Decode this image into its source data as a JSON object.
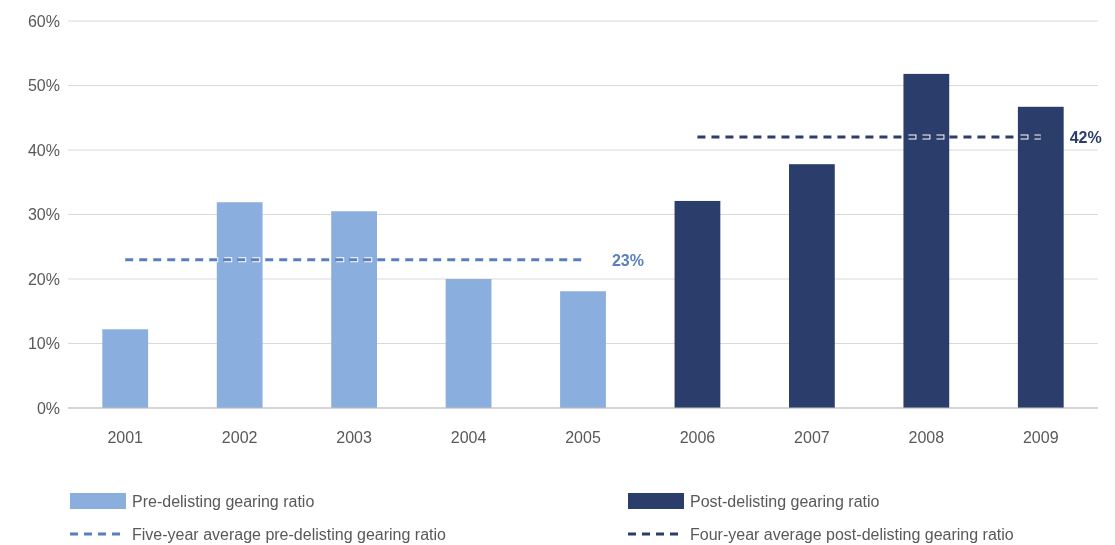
{
  "chart_data": {
    "type": "bar",
    "categories": [
      "2001",
      "2002",
      "2003",
      "2004",
      "2005",
      "2006",
      "2007",
      "2008",
      "2009"
    ],
    "series": [
      {
        "name": "Pre-delisting gearing ratio",
        "color": "#8aaedd",
        "values": [
          12.2,
          31.9,
          30.5,
          20.0,
          18.1,
          null,
          null,
          null,
          null
        ]
      },
      {
        "name": "Post-delisting gearing ratio",
        "color": "#2b3d6b",
        "values": [
          null,
          null,
          null,
          null,
          null,
          32.1,
          37.8,
          51.8,
          46.7
        ]
      },
      {
        "name": "Five-year average pre-delisting gearing ratio",
        "type": "line",
        "line_style": "dashed",
        "color": "#5a7fbd",
        "values": [
          23,
          23,
          23,
          23,
          23,
          null,
          null,
          null,
          null
        ],
        "value_labels": [
          null,
          null,
          null,
          null,
          "23%",
          null,
          null,
          null,
          null
        ]
      },
      {
        "name": "Four-year average post-delisting gearing ratio",
        "type": "line",
        "line_style": "dashed",
        "color": "#2b3d6b",
        "values": [
          null,
          null,
          null,
          null,
          null,
          42,
          42,
          42,
          42
        ],
        "value_labels": [
          null,
          null,
          null,
          null,
          null,
          null,
          null,
          null,
          "42%"
        ]
      }
    ],
    "ylim": [
      0,
      60
    ],
    "yticks": [
      {
        "value": 0,
        "label": "0%"
      },
      {
        "value": 10,
        "label": "10%"
      },
      {
        "value": 20,
        "label": "20%"
      },
      {
        "value": 30,
        "label": "30%"
      },
      {
        "value": 40,
        "label": "40%"
      },
      {
        "value": 50,
        "label": "50%"
      },
      {
        "value": 60,
        "label": "60%"
      }
    ],
    "grid": "y",
    "legend": "bottom"
  }
}
